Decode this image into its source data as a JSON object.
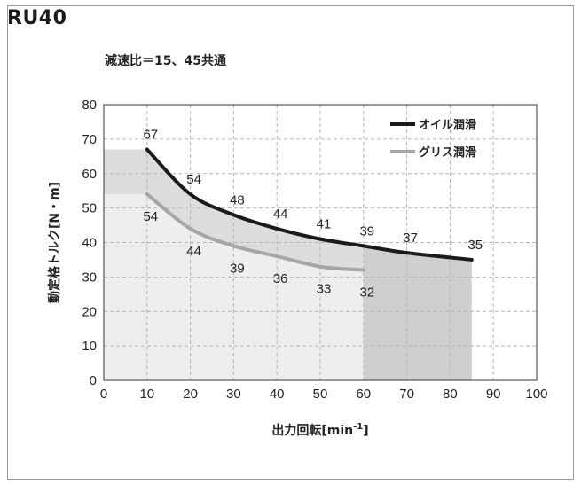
{
  "chart_data": {
    "type": "line",
    "title": "RU40",
    "subtitle": "減速比＝15、45共通",
    "xlabel": "出力回転[min",
    "xlabel_sup": "-1",
    "xlabel_end": "]",
    "ylabel": "動定格トルク[N・m]",
    "xlim": [
      0,
      100
    ],
    "ylim": [
      0,
      80
    ],
    "x_ticks": [
      "0",
      "10",
      "20",
      "30",
      "40",
      "50",
      "60",
      "70",
      "80",
      "90",
      "100"
    ],
    "y_ticks": [
      "0",
      "10",
      "20",
      "30",
      "40",
      "50",
      "60",
      "70",
      "80"
    ],
    "grid": true,
    "legend_position": "top-right",
    "series": [
      {
        "name": "オイル潤滑",
        "color": "#1a1a1a",
        "x": [
          10,
          20,
          30,
          40,
          50,
          60,
          70,
          85
        ],
        "y": [
          67,
          54,
          48,
          44,
          41,
          39,
          37,
          35
        ],
        "labels": [
          "67",
          "54",
          "48",
          "44",
          "41",
          "39",
          "37",
          "35"
        ]
      },
      {
        "name": "グリス潤滑",
        "color": "#a6a6a6",
        "x": [
          10,
          20,
          30,
          40,
          50,
          60
        ],
        "y": [
          54,
          44,
          39,
          36,
          33,
          32
        ],
        "labels": [
          "54",
          "44",
          "39",
          "36",
          "33",
          "32"
        ]
      }
    ],
    "shading": {
      "light_color": "#eeeeee",
      "mid_color": "#dddddd",
      "dark_color": "#cfcfcf"
    }
  }
}
